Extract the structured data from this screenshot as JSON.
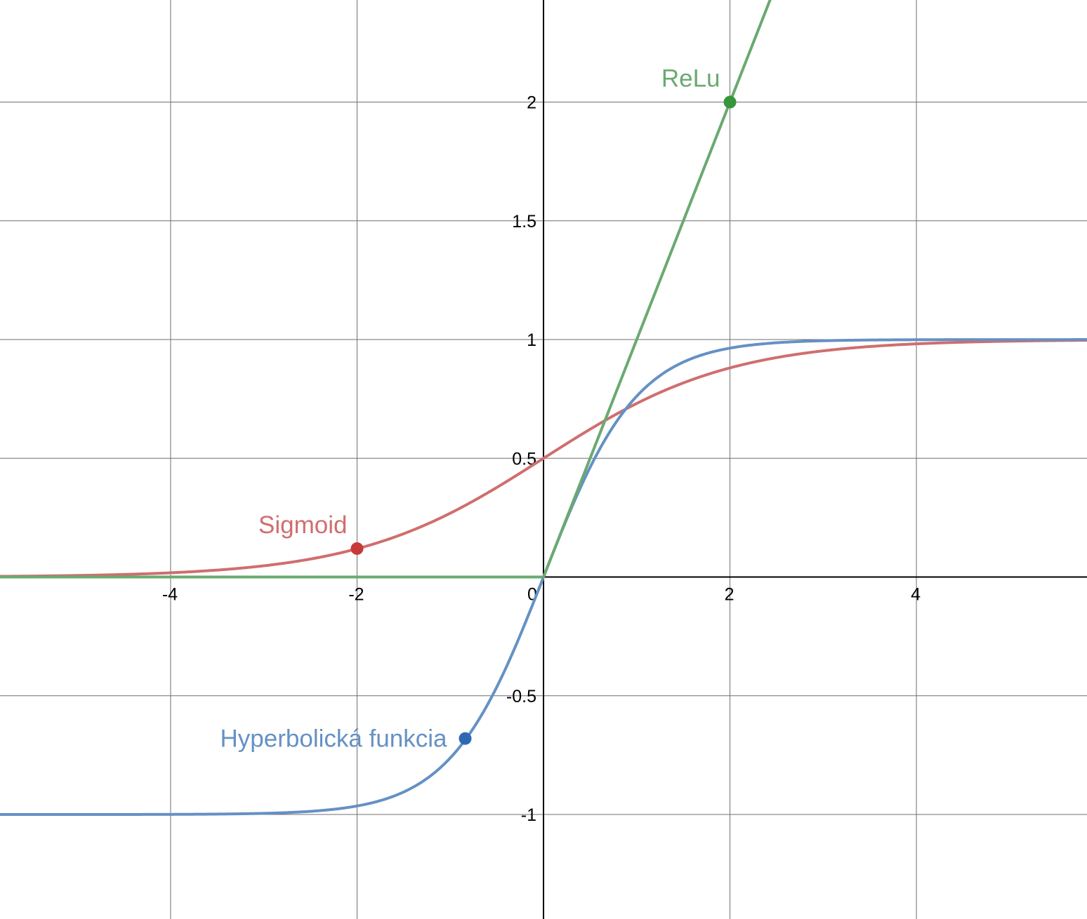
{
  "chart_data": {
    "type": "line",
    "xlim": [
      -5.83,
      5.83
    ],
    "ylim": [
      -1.44,
      2.43
    ],
    "grid": true,
    "x_ticks": [
      {
        "value": -4,
        "label": "-4"
      },
      {
        "value": -2,
        "label": "-2"
      },
      {
        "value": 0,
        "label": "0"
      },
      {
        "value": 2,
        "label": "2"
      },
      {
        "value": 4,
        "label": "4"
      }
    ],
    "y_ticks": [
      {
        "value": -1,
        "label": "-1"
      },
      {
        "value": -0.5,
        "label": "-0.5"
      },
      {
        "value": 0.5,
        "label": "0.5"
      },
      {
        "value": 1,
        "label": "1"
      },
      {
        "value": 1.5,
        "label": "1.5"
      },
      {
        "value": 2,
        "label": "2"
      }
    ],
    "series": [
      {
        "name": "Sigmoid",
        "function": "sigmoid",
        "color": "#d06e6e",
        "point_color": "#c73a3a",
        "point": {
          "x": -2,
          "y": 0.12
        },
        "label_anchor": "end"
      },
      {
        "name": "ReLu",
        "function": "relu",
        "color": "#6aaa6f",
        "point_color": "#35963d",
        "point": {
          "x": 2,
          "y": 2
        },
        "label_anchor": "end"
      },
      {
        "name": "Hyperbolická funkcia",
        "function": "tanh",
        "color": "#6591c4",
        "point_color": "#2f68b2",
        "point": {
          "x": -0.84,
          "y": -0.68
        },
        "label_anchor": "end"
      }
    ]
  }
}
